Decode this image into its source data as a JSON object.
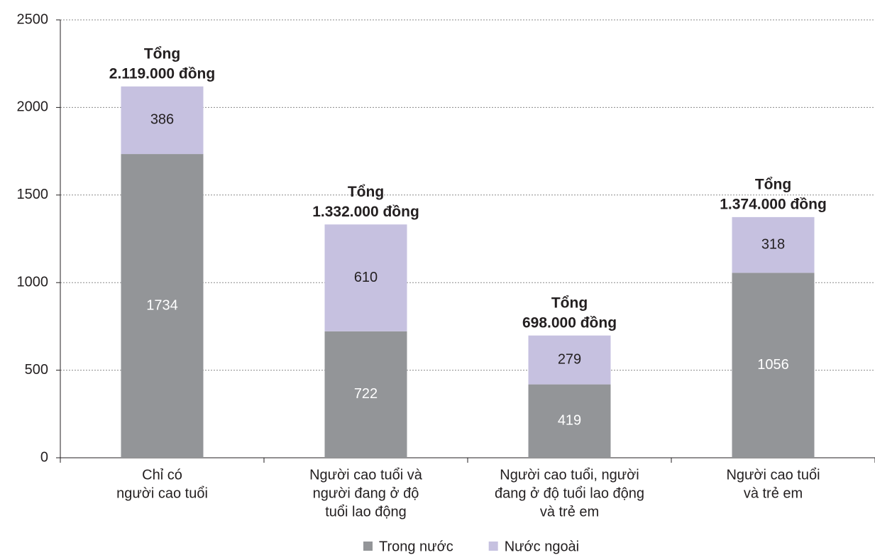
{
  "chart_data": {
    "type": "stacked-bar",
    "categories": [
      [
        "Chỉ có",
        "người cao tuổi"
      ],
      [
        "Người cao tuổi và",
        "người đang ở độ",
        "tuổi lao động"
      ],
      [
        "Người cao tuổi, người",
        "đang ở độ tuổi lao động",
        "và trẻ em"
      ],
      [
        "Người cao tuổi",
        "và trẻ em"
      ]
    ],
    "series": [
      {
        "name": "Trong nước",
        "color": "#939598",
        "label_color": "#ffffff",
        "values": [
          1734,
          722,
          419,
          1056
        ]
      },
      {
        "name": "Nước ngoài",
        "color": "#c6c1e0",
        "label_color": "#231f20",
        "values": [
          386,
          610,
          279,
          318
        ]
      }
    ],
    "total_labels": [
      [
        "Tổng",
        "2.119.000 đồng"
      ],
      [
        "Tổng",
        "1.332.000 đồng"
      ],
      [
        "Tổng",
        "698.000 đồng"
      ],
      [
        "Tổng",
        "1.374.000 đồng"
      ]
    ],
    "ylim": [
      0,
      2500
    ],
    "yticks": [
      0,
      500,
      1000,
      1500,
      2000,
      2500
    ],
    "grid": true
  }
}
